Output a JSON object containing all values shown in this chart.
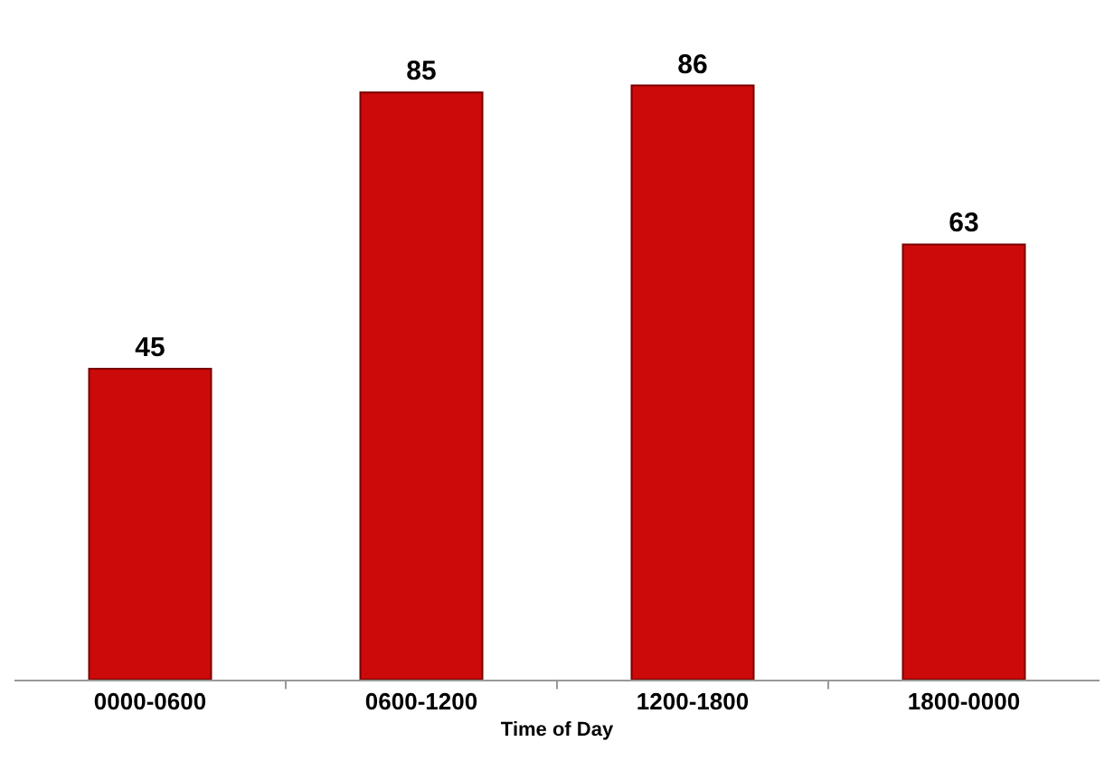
{
  "chart_data": {
    "type": "bar",
    "xlabel": "Time of Day",
    "categories": [
      "0000-0600",
      "0600-1200",
      "1200-1800",
      "1800-0000"
    ],
    "values": [
      45,
      85,
      86,
      63
    ],
    "color": "#cc0a0a",
    "data_labels": true
  }
}
